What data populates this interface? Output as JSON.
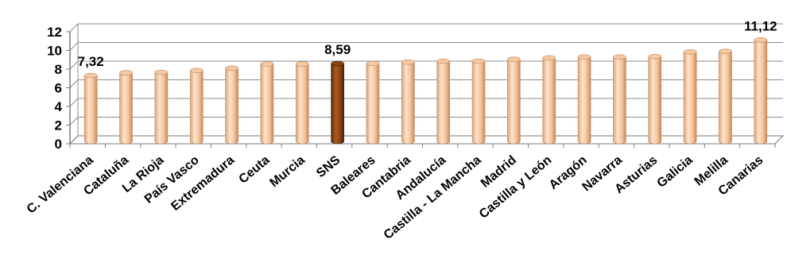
{
  "chart_data": {
    "type": "bar",
    "categories": [
      "C. Valenciana",
      "Cataluña",
      "La Rioja",
      "País Vasco",
      "Extremadura",
      "Ceuta",
      "Murcia",
      "SNS",
      "Baleares",
      "Cantabria",
      "Andalucía",
      "Castilla - La Mancha",
      "Madrid",
      "Castilla y León",
      "Aragón",
      "Navarra",
      "Asturias",
      "Galicia",
      "Melilla",
      "Canarias"
    ],
    "values": [
      7.32,
      7.6,
      7.65,
      7.85,
      8.1,
      8.55,
      8.55,
      8.59,
      8.6,
      8.75,
      8.85,
      8.85,
      9.05,
      9.2,
      9.3,
      9.3,
      9.35,
      9.85,
      9.9,
      11.12
    ],
    "data_labels": [
      {
        "category": "C. Valenciana",
        "text": "7,32"
      },
      {
        "category": "SNS",
        "text": "8,59"
      },
      {
        "category": "Canarias",
        "text": "11,12"
      }
    ],
    "highlight": {
      "category": "SNS",
      "color": "#8b4513"
    },
    "bar_color": "#f5c9a2",
    "yticks": [
      "0",
      "2",
      "4",
      "6",
      "8",
      "10",
      "12"
    ],
    "ylim": [
      0,
      12
    ],
    "grid": true,
    "style": "3d-cylinder"
  }
}
